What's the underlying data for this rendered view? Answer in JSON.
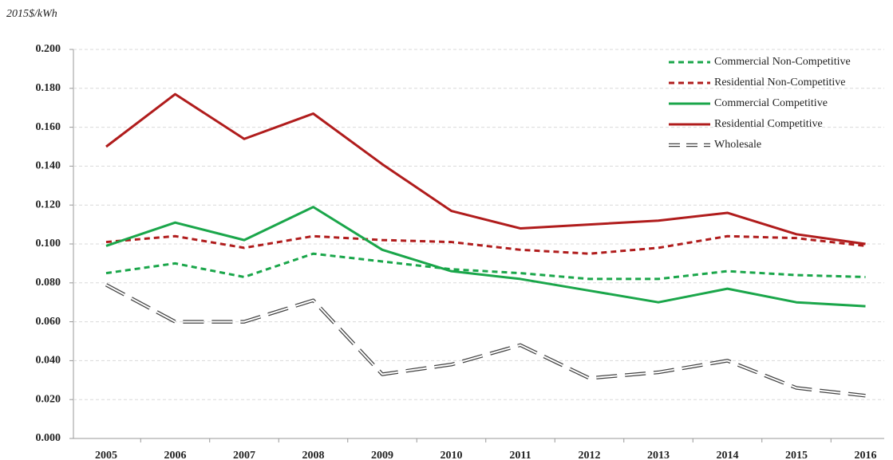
{
  "chart_data": {
    "type": "line",
    "y_label": "2015$/kWh",
    "categories": [
      "2005",
      "2006",
      "2007",
      "2008",
      "2009",
      "2010",
      "2011",
      "2012",
      "2013",
      "2014",
      "2015",
      "2016"
    ],
    "series": [
      {
        "name": "Commercial Non-Competitive",
        "color": "#1aa64a",
        "dash": "dashed",
        "values": [
          0.085,
          0.09,
          0.083,
          0.095,
          0.091,
          0.087,
          0.085,
          0.082,
          0.082,
          0.086,
          0.084,
          0.083
        ]
      },
      {
        "name": "Residential Non-Competitive",
        "color": "#b01c1c",
        "dash": "dashed",
        "values": [
          0.101,
          0.104,
          0.098,
          0.104,
          0.102,
          0.101,
          0.097,
          0.095,
          0.098,
          0.104,
          0.103,
          0.099
        ]
      },
      {
        "name": "Commercial Competitive",
        "color": "#1aa64a",
        "dash": "solid",
        "values": [
          0.099,
          0.111,
          0.102,
          0.119,
          0.097,
          0.086,
          0.082,
          0.076,
          0.07,
          0.077,
          0.07,
          0.068
        ]
      },
      {
        "name": "Residential Competitive",
        "color": "#b01c1c",
        "dash": "solid",
        "values": [
          0.15,
          0.177,
          0.154,
          0.167,
          0.141,
          0.117,
          0.108,
          0.11,
          0.112,
          0.116,
          0.105,
          0.1
        ]
      },
      {
        "name": "Wholesale",
        "color": "#444444",
        "dash": "long-dash-outline",
        "values": [
          0.079,
          0.06,
          0.06,
          0.071,
          0.033,
          0.038,
          0.048,
          0.031,
          0.034,
          0.04,
          0.026,
          0.022
        ]
      }
    ],
    "ylim": [
      0,
      0.2
    ],
    "yticks": [
      {
        "value": 0,
        "label": "0.000"
      },
      {
        "value": 0.02,
        "label": "0.020"
      },
      {
        "value": 0.04,
        "label": "0.040"
      },
      {
        "value": 0.06,
        "label": "0.060"
      },
      {
        "value": 0.08,
        "label": "0.080"
      },
      {
        "value": 0.1,
        "label": "0.100"
      },
      {
        "value": 0.12,
        "label": "0.120"
      },
      {
        "value": 0.14,
        "label": "0.140"
      },
      {
        "value": 0.16,
        "label": "0.160"
      },
      {
        "value": 0.18,
        "label": "0.180"
      },
      {
        "value": 0.2,
        "label": "0.200"
      }
    ],
    "grid": true,
    "legend_position": "upper right"
  }
}
